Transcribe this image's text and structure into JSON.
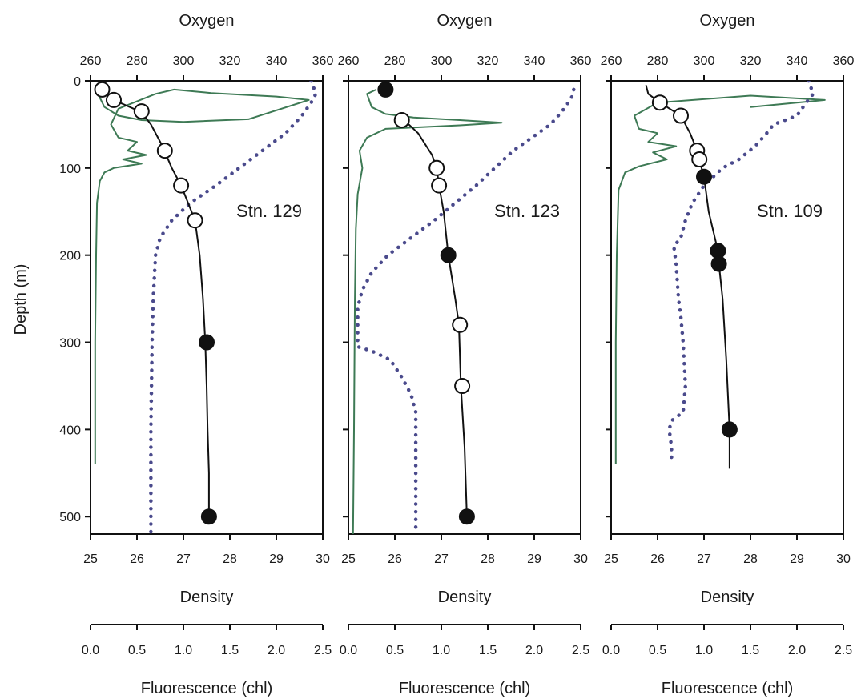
{
  "chart_data": {
    "type": "line",
    "ylabel": "Depth (m)",
    "ylim": [
      0,
      520
    ],
    "y_inverted": true,
    "yticks": [
      0,
      100,
      200,
      300,
      400,
      500
    ],
    "top_axis": {
      "label": "Oxygen",
      "range": [
        260,
        360
      ],
      "ticks": [
        260,
        280,
        300,
        320,
        340,
        360
      ]
    },
    "bottom_axis": {
      "label": "Density",
      "range": [
        25,
        30
      ],
      "ticks": [
        25,
        26,
        27,
        28,
        29,
        30
      ]
    },
    "fluor_axis": {
      "label": "Fluorescence (chl)",
      "range": [
        0,
        2.5
      ],
      "ticks": [
        "0.0",
        "0.5",
        "1.0",
        "1.5",
        "2.0",
        "2.5"
      ]
    },
    "colors": {
      "oxygen": "#4a4a8c",
      "fluorescence": "#3e7a55",
      "density": "#111111",
      "frame": "#111111"
    },
    "panels": [
      {
        "station": "Stn. 129",
        "density_curve": [
          [
            25.15,
            5
          ],
          [
            25.3,
            12
          ],
          [
            25.5,
            22
          ],
          [
            26.1,
            36
          ],
          [
            26.3,
            50
          ],
          [
            26.55,
            75
          ],
          [
            26.75,
            100
          ],
          [
            26.95,
            120
          ],
          [
            27.1,
            140
          ],
          [
            27.25,
            160
          ],
          [
            27.35,
            200
          ],
          [
            27.42,
            250
          ],
          [
            27.47,
            300
          ],
          [
            27.5,
            350
          ],
          [
            27.52,
            400
          ],
          [
            27.55,
            450
          ],
          [
            27.55,
            500
          ]
        ],
        "density_samples": [
          {
            "density": 25.25,
            "depth": 10,
            "filled": false
          },
          {
            "density": 25.5,
            "depth": 22,
            "filled": false
          },
          {
            "density": 26.1,
            "depth": 35,
            "filled": false
          },
          {
            "density": 26.6,
            "depth": 80,
            "filled": false
          },
          {
            "density": 26.95,
            "depth": 120,
            "filled": false
          },
          {
            "density": 27.25,
            "depth": 160,
            "filled": false
          },
          {
            "density": 27.5,
            "depth": 300,
            "filled": true
          },
          {
            "density": 27.55,
            "depth": 500,
            "filled": true
          }
        ],
        "oxygen": [
          [
            355,
            0
          ],
          [
            357,
            15
          ],
          [
            355,
            25
          ],
          [
            351,
            40
          ],
          [
            344,
            60
          ],
          [
            334,
            80
          ],
          [
            324,
            100
          ],
          [
            314,
            120
          ],
          [
            303,
            140
          ],
          [
            295,
            160
          ],
          [
            290,
            180
          ],
          [
            288,
            200
          ],
          [
            287,
            250
          ],
          [
            286.5,
            300
          ],
          [
            286,
            400
          ],
          [
            286,
            520
          ]
        ],
        "fluorescence": [
          [
            0.05,
            5
          ],
          [
            0.08,
            15
          ],
          [
            0.15,
            30
          ],
          [
            0.3,
            40
          ],
          [
            0.55,
            45
          ],
          [
            1.0,
            47
          ],
          [
            1.7,
            44
          ],
          [
            2.35,
            22
          ],
          [
            2.0,
            18
          ],
          [
            1.3,
            14
          ],
          [
            0.9,
            10
          ],
          [
            0.7,
            15
          ],
          [
            0.3,
            32
          ],
          [
            0.22,
            50
          ],
          [
            0.3,
            65
          ],
          [
            0.5,
            70
          ],
          [
            0.4,
            80
          ],
          [
            0.6,
            85
          ],
          [
            0.35,
            90
          ],
          [
            0.55,
            95
          ],
          [
            0.25,
            100
          ],
          [
            0.15,
            105
          ],
          [
            0.1,
            115
          ],
          [
            0.07,
            140
          ],
          [
            0.06,
            200
          ],
          [
            0.05,
            300
          ],
          [
            0.05,
            440
          ]
        ]
      },
      {
        "station": "Stn. 123",
        "density_curve": [
          [
            26.1,
            40
          ],
          [
            26.5,
            60
          ],
          [
            26.8,
            85
          ],
          [
            26.9,
            100
          ],
          [
            26.95,
            120
          ],
          [
            27.05,
            150
          ],
          [
            27.15,
            200
          ],
          [
            27.3,
            250
          ],
          [
            27.38,
            280
          ],
          [
            27.42,
            350
          ],
          [
            27.5,
            420
          ],
          [
            27.55,
            500
          ]
        ],
        "density_samples": [
          {
            "density": 25.8,
            "depth": 10,
            "filled": true
          },
          {
            "density": 26.15,
            "depth": 45,
            "filled": false
          },
          {
            "density": 26.9,
            "depth": 100,
            "filled": false
          },
          {
            "density": 26.95,
            "depth": 120,
            "filled": false
          },
          {
            "density": 27.15,
            "depth": 200,
            "filled": true
          },
          {
            "density": 27.4,
            "depth": 280,
            "filled": false
          },
          {
            "density": 27.45,
            "depth": 350,
            "filled": false
          },
          {
            "density": 27.55,
            "depth": 500,
            "filled": true
          }
        ],
        "oxygen": [
          [
            357,
            10
          ],
          [
            356,
            20
          ],
          [
            352,
            35
          ],
          [
            347,
            50
          ],
          [
            339,
            65
          ],
          [
            331,
            80
          ],
          [
            323,
            100
          ],
          [
            315,
            120
          ],
          [
            306,
            140
          ],
          [
            297,
            160
          ],
          [
            287,
            180
          ],
          [
            277,
            200
          ],
          [
            270,
            220
          ],
          [
            266,
            240
          ],
          [
            264,
            260
          ],
          [
            264,
            280
          ],
          [
            264,
            305
          ],
          [
            270,
            310
          ],
          [
            278,
            320
          ],
          [
            283,
            340
          ],
          [
            287,
            360
          ],
          [
            289,
            380
          ],
          [
            289,
            400
          ],
          [
            289,
            450
          ],
          [
            289,
            520
          ]
        ],
        "fluorescence": [
          [
            0.3,
            10
          ],
          [
            0.2,
            15
          ],
          [
            0.25,
            30
          ],
          [
            0.4,
            38
          ],
          [
            0.7,
            42
          ],
          [
            1.2,
            45
          ],
          [
            1.65,
            48
          ],
          [
            1.2,
            51
          ],
          [
            0.4,
            55
          ],
          [
            0.2,
            65
          ],
          [
            0.12,
            80
          ],
          [
            0.15,
            100
          ],
          [
            0.1,
            130
          ],
          [
            0.08,
            170
          ],
          [
            0.07,
            250
          ],
          [
            0.06,
            400
          ],
          [
            0.05,
            520
          ]
        ]
      },
      {
        "station": "Stn. 109",
        "density_curve": [
          [
            25.75,
            5
          ],
          [
            25.8,
            15
          ],
          [
            26.05,
            25
          ],
          [
            26.5,
            40
          ],
          [
            26.7,
            60
          ],
          [
            26.85,
            80
          ],
          [
            26.92,
            95
          ],
          [
            27.0,
            110
          ],
          [
            27.1,
            150
          ],
          [
            27.3,
            195
          ],
          [
            27.32,
            210
          ],
          [
            27.4,
            250
          ],
          [
            27.48,
            320
          ],
          [
            27.55,
            400
          ],
          [
            27.55,
            445
          ]
        ],
        "density_samples": [
          {
            "density": 26.05,
            "depth": 25,
            "filled": false
          },
          {
            "density": 26.5,
            "depth": 40,
            "filled": false
          },
          {
            "density": 26.85,
            "depth": 80,
            "filled": false
          },
          {
            "density": 26.9,
            "depth": 90,
            "filled": false
          },
          {
            "density": 27.0,
            "depth": 110,
            "filled": true
          },
          {
            "density": 27.3,
            "depth": 195,
            "filled": true
          },
          {
            "density": 27.32,
            "depth": 210,
            "filled": true
          },
          {
            "density": 27.55,
            "depth": 400,
            "filled": true
          }
        ],
        "oxygen": [
          [
            345,
            0
          ],
          [
            347,
            15
          ],
          [
            344,
            25
          ],
          [
            340,
            40
          ],
          [
            330,
            50
          ],
          [
            327,
            60
          ],
          [
            322,
            75
          ],
          [
            315,
            90
          ],
          [
            308,
            100
          ],
          [
            300,
            120
          ],
          [
            295,
            140
          ],
          [
            292,
            160
          ],
          [
            290,
            180
          ],
          [
            287,
            190
          ],
          [
            288,
            210
          ],
          [
            289,
            250
          ],
          [
            290,
            270
          ],
          [
            291,
            300
          ],
          [
            292,
            350
          ],
          [
            291,
            380
          ],
          [
            286,
            390
          ],
          [
            285,
            400
          ],
          [
            286,
            420
          ],
          [
            286,
            440
          ]
        ],
        "fluorescence": [
          [
            1.5,
            30
          ],
          [
            2.3,
            22
          ],
          [
            1.5,
            17
          ],
          [
            0.5,
            25
          ],
          [
            0.25,
            40
          ],
          [
            0.3,
            55
          ],
          [
            0.5,
            60
          ],
          [
            0.4,
            70
          ],
          [
            0.7,
            75
          ],
          [
            0.45,
            82
          ],
          [
            0.6,
            90
          ],
          [
            0.3,
            98
          ],
          [
            0.15,
            105
          ],
          [
            0.08,
            125
          ],
          [
            0.06,
            200
          ],
          [
            0.05,
            300
          ],
          [
            0.05,
            440
          ]
        ]
      }
    ]
  }
}
